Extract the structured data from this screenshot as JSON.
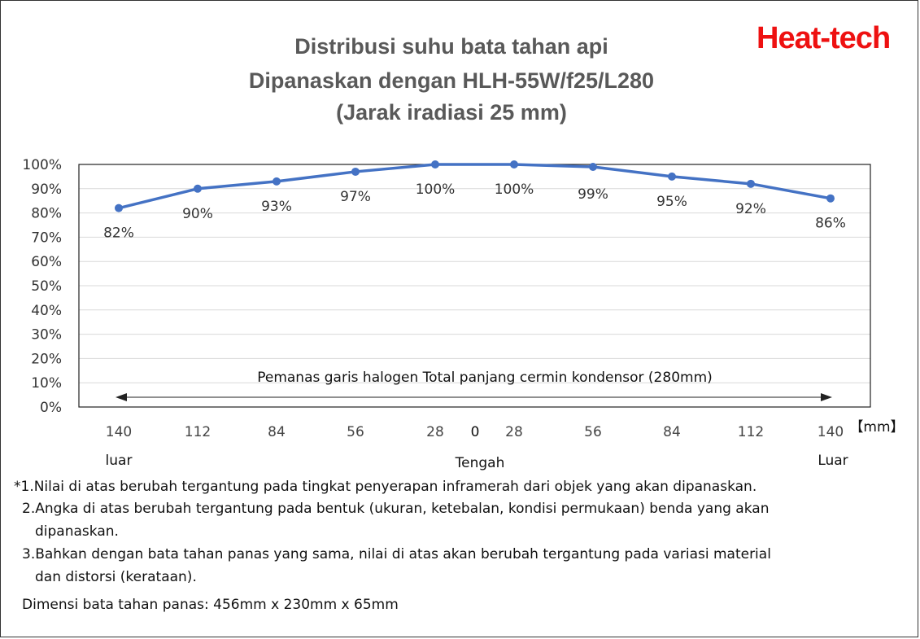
{
  "header": {
    "title_line1": "Distribusi suhu bata tahan api",
    "title_line2": "Dipanaskan dengan HLH-55W/f25/L280",
    "title_line3": "(Jarak iradiasi 25 mm)",
    "brand": "Heat-tech"
  },
  "chart_data": {
    "type": "line",
    "categories": [
      "140",
      "112",
      "84",
      "56",
      "28",
      "28",
      "56",
      "84",
      "112",
      "140"
    ],
    "center_tick": "0",
    "unit_label": "【mm】",
    "position_labels": {
      "left": "luar",
      "center": "Tengah",
      "right": "Luar"
    },
    "values": [
      82,
      90,
      93,
      97,
      100,
      100,
      99,
      95,
      92,
      86
    ],
    "data_labels": [
      "82%",
      "90%",
      "93%",
      "97%",
      "100%",
      "100%",
      "99%",
      "95%",
      "92%",
      "86%"
    ],
    "y_ticks": [
      "0%",
      "10%",
      "20%",
      "30%",
      "40%",
      "50%",
      "60%",
      "70%",
      "80%",
      "90%",
      "100%"
    ],
    "ylim": [
      0,
      100
    ],
    "grid": true,
    "annotation": "Pemanas garis halogen Total panjang cermin kondensor (280mm)",
    "series_color": "#4472c4"
  },
  "notes": {
    "n1": "*1.Nilai di atas berubah tergantung pada tingkat penyerapan inframerah dari objek yang akan dipanaskan.",
    "n2": "2.Angka di atas berubah tergantung pada bentuk (ukuran, ketebalan, kondisi permukaan) benda yang akan",
    "n2b": "dipanaskan.",
    "n3": "3.Bahkan dengan bata tahan panas yang sama, nilai di atas akan berubah tergantung pada variasi material",
    "n3b": "dan distorsi (kerataan).",
    "n4": "Dimensi bata tahan panas: 456mm x 230mm x 65mm"
  }
}
